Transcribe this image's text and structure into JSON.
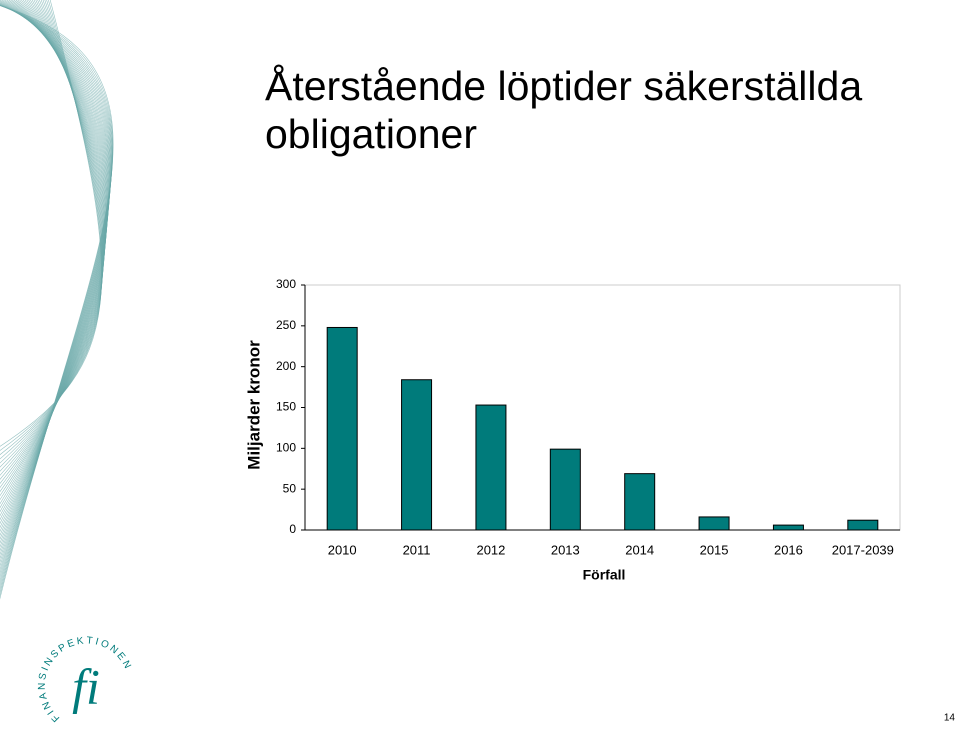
{
  "chart_data": {
    "type": "bar",
    "title": "Återstående löptider säkerställda obligationer",
    "y_label": "Miljarder kronor",
    "x_label": "Förfall",
    "categories": [
      "2010",
      "2011",
      "2012",
      "2013",
      "2014",
      "2015",
      "2016",
      "2017-2039"
    ],
    "values": [
      248,
      184,
      153,
      99,
      69,
      16,
      6,
      12
    ],
    "color": "#007b7b",
    "ylim": [
      0,
      300
    ],
    "yticks": [
      0,
      50,
      100,
      150,
      200,
      250,
      300
    ],
    "grid": false
  },
  "logo": {
    "mark": "fi",
    "name": "FINANSINSPEKTIONEN"
  },
  "page_number": "14"
}
